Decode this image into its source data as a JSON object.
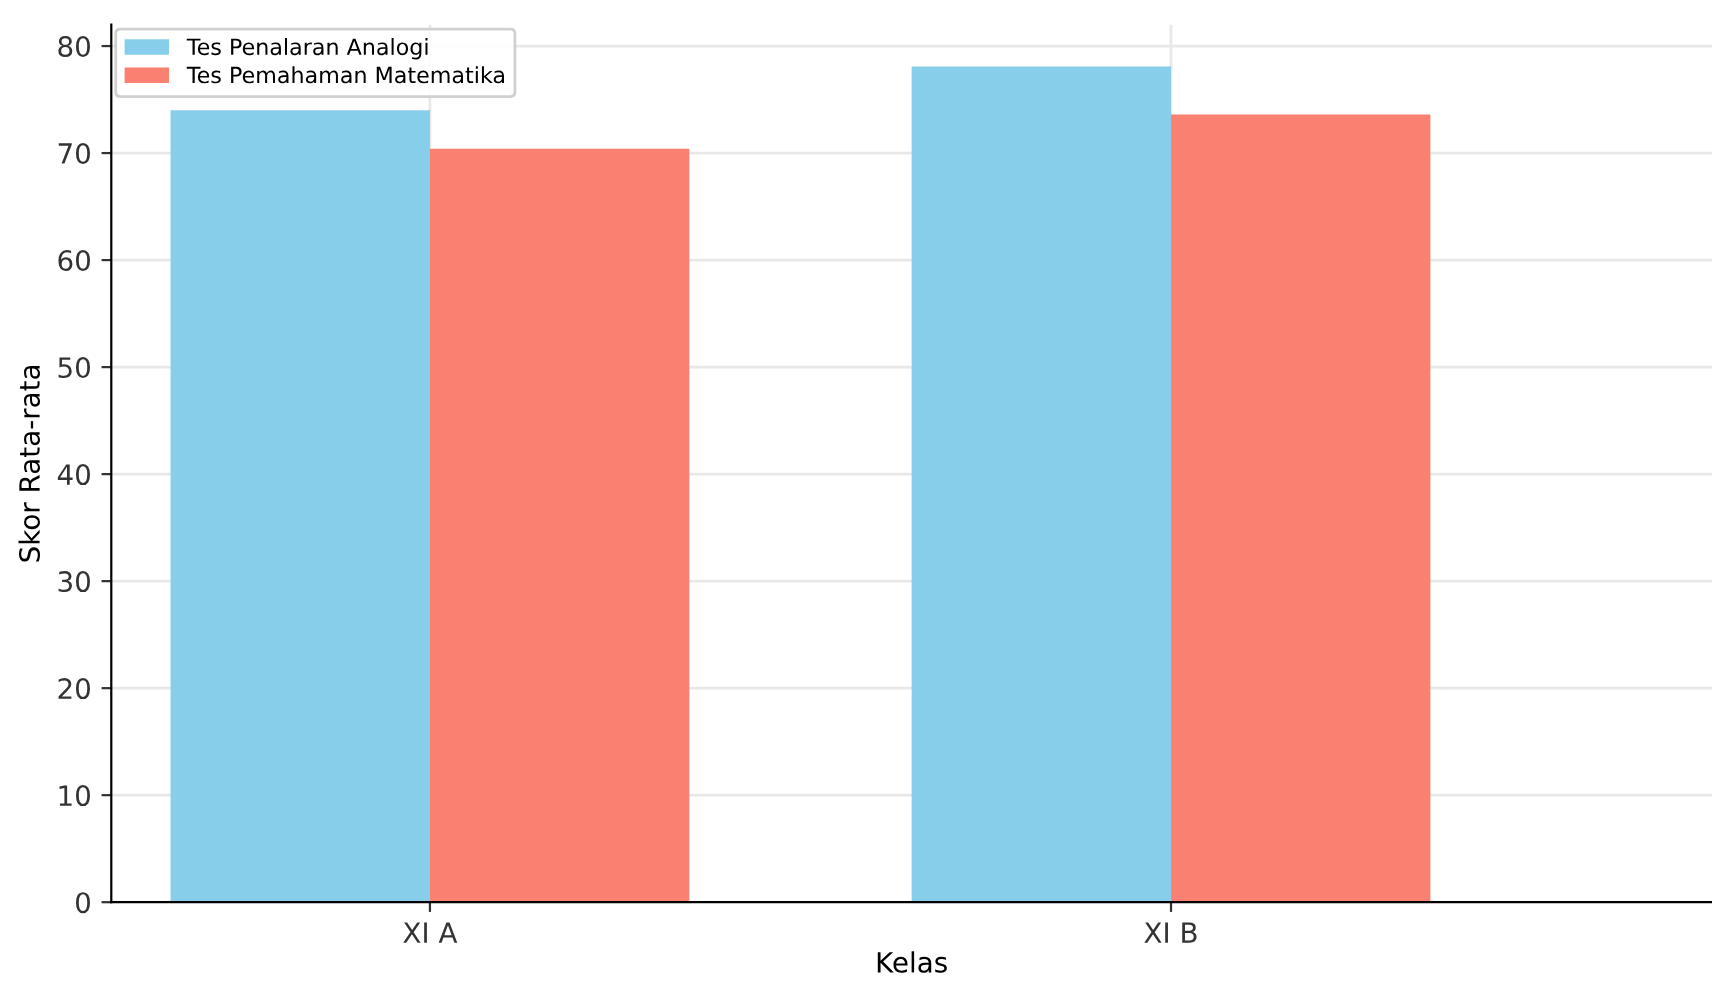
{
  "chart_data": {
    "type": "bar",
    "xlabel": "Kelas",
    "ylabel": "Skor Rata-rata",
    "categories": [
      "XI A",
      "XI B"
    ],
    "series": [
      {
        "name": "Tes Penalaran Analogi",
        "color": "#87ceeb",
        "values": [
          74,
          78.1
        ]
      },
      {
        "name": "Tes Pemahaman Matematika",
        "color": "#fa8072",
        "values": [
          70.4,
          73.6
        ]
      }
    ],
    "ylim": [
      0,
      82
    ],
    "yticks": [
      0,
      10,
      20,
      30,
      40,
      50,
      60,
      70,
      80
    ],
    "grid": true,
    "legend": "top left"
  }
}
